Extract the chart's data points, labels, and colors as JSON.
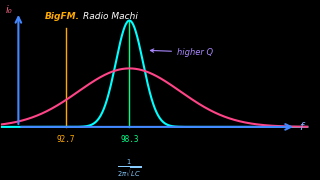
{
  "background_color": "#000000",
  "title_bigfm": "BigFM.",
  "title_radio": "Radio Machi",
  "higher_q_label": "higher Q",
  "x_label": "f",
  "y_label": "i₀",
  "freq_bigfm": 92.7,
  "freq_radio": 98.3,
  "peak_narrow_color": "#00ffff",
  "peak_broad_color": "#ff4488",
  "freq_bigfm_color": "#ffaa00",
  "freq_radio_color": "#00ff88",
  "title_bigfm_color": "#ffaa00",
  "title_radio_color": "#ffffff",
  "axis_color": "#4488ff",
  "formula_color": "#88ccff",
  "higher_q_color": "#aa88ff",
  "axis_label_color": "#ff6688",
  "x_label_color": "#88aaff",
  "y_label_color": "#ff6688"
}
